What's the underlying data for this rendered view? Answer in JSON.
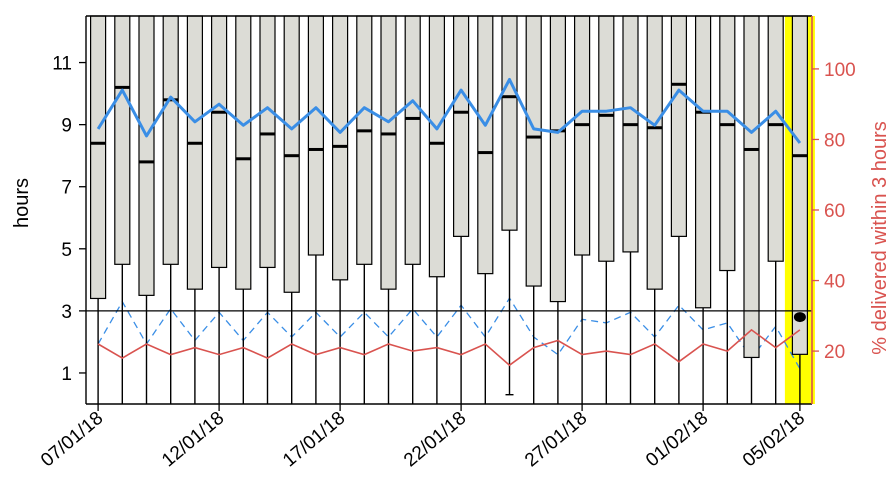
{
  "chart_data": {
    "type": "box",
    "ylabel": "hours",
    "ylabel_right": "% delivered within 3 hours",
    "ylim": [
      0,
      12.5
    ],
    "ylim_right": [
      5,
      115
    ],
    "yticks": [
      1,
      3,
      5,
      7,
      9,
      11
    ],
    "yticks_right": [
      20,
      40,
      60,
      80,
      100
    ],
    "threshold_hours": 3,
    "xtick_labels": [
      "07/01/18",
      "12/01/18",
      "17/01/18",
      "22/01/18",
      "27/01/18",
      "01/02/18",
      "05/02/18"
    ],
    "xtick_positions": [
      0,
      5,
      10,
      15,
      20,
      25,
      29
    ],
    "highlight_index": 29,
    "highlight_color": "#ffff00",
    "box_fill": "#dcdcd6",
    "colors": {
      "median_series": "#3a8ee6",
      "within3_series": "#d9534f",
      "dashed_series": "#3a8ee6",
      "right_axis": "#d9534f"
    },
    "boxes": [
      {
        "q1": 3.4,
        "median": 8.4,
        "q3": 12.5,
        "low": 0,
        "high": 12.5
      },
      {
        "q1": 4.5,
        "median": 10.2,
        "q3": 12.5,
        "low": 0,
        "high": 12.5
      },
      {
        "q1": 3.5,
        "median": 7.8,
        "q3": 12.5,
        "low": 0,
        "high": 12.5
      },
      {
        "q1": 4.5,
        "median": 9.8,
        "q3": 12.5,
        "low": 0,
        "high": 12.5
      },
      {
        "q1": 3.7,
        "median": 8.4,
        "q3": 12.5,
        "low": 0,
        "high": 12.5
      },
      {
        "q1": 4.4,
        "median": 9.4,
        "q3": 12.5,
        "low": 0,
        "high": 12.5
      },
      {
        "q1": 3.7,
        "median": 7.9,
        "q3": 12.5,
        "low": 0,
        "high": 12.5
      },
      {
        "q1": 4.4,
        "median": 8.7,
        "q3": 12.5,
        "low": 0,
        "high": 12.5
      },
      {
        "q1": 3.6,
        "median": 8.0,
        "q3": 12.5,
        "low": 0,
        "high": 12.5
      },
      {
        "q1": 4.8,
        "median": 8.2,
        "q3": 12.5,
        "low": 0,
        "high": 12.5
      },
      {
        "q1": 4.0,
        "median": 8.3,
        "q3": 12.5,
        "low": 0,
        "high": 12.5
      },
      {
        "q1": 4.5,
        "median": 8.8,
        "q3": 12.5,
        "low": 0,
        "high": 12.5
      },
      {
        "q1": 3.7,
        "median": 8.7,
        "q3": 12.5,
        "low": 0,
        "high": 12.5
      },
      {
        "q1": 4.5,
        "median": 9.2,
        "q3": 12.5,
        "low": 0,
        "high": 12.5
      },
      {
        "q1": 4.1,
        "median": 8.4,
        "q3": 12.5,
        "low": 0,
        "high": 12.5
      },
      {
        "q1": 5.4,
        "median": 9.4,
        "q3": 12.5,
        "low": 0,
        "high": 12.5
      },
      {
        "q1": 4.2,
        "median": 8.1,
        "q3": 12.5,
        "low": 0,
        "high": 12.5
      },
      {
        "q1": 5.6,
        "median": 9.9,
        "q3": 12.5,
        "low": 0.3,
        "high": 12.5
      },
      {
        "q1": 3.8,
        "median": 8.6,
        "q3": 12.5,
        "low": 0,
        "high": 12.5
      },
      {
        "q1": 3.3,
        "median": 8.8,
        "q3": 12.5,
        "low": 0,
        "high": 12.5
      },
      {
        "q1": 4.8,
        "median": 9.0,
        "q3": 12.5,
        "low": 0,
        "high": 12.5
      },
      {
        "q1": 4.6,
        "median": 9.3,
        "q3": 12.5,
        "low": 0,
        "high": 12.5
      },
      {
        "q1": 4.9,
        "median": 9.0,
        "q3": 12.5,
        "low": 0,
        "high": 12.5
      },
      {
        "q1": 3.7,
        "median": 8.9,
        "q3": 12.5,
        "low": 0,
        "high": 12.5
      },
      {
        "q1": 5.4,
        "median": 10.3,
        "q3": 12.5,
        "low": 0,
        "high": 12.5
      },
      {
        "q1": 3.1,
        "median": 9.4,
        "q3": 12.5,
        "low": 0,
        "high": 12.5
      },
      {
        "q1": 4.3,
        "median": 9.0,
        "q3": 12.5,
        "low": 0,
        "high": 12.5
      },
      {
        "q1": 1.5,
        "median": 8.2,
        "q3": 12.5,
        "low": 0,
        "high": 12.5
      },
      {
        "q1": 4.6,
        "median": 9.0,
        "q3": 12.5,
        "low": 0,
        "high": 12.5
      },
      {
        "q1": 1.6,
        "median": 8.0,
        "q3": 12.5,
        "low": 0,
        "high": 12.5
      }
    ],
    "highlight_point": {
      "index": 29,
      "value": 2.8
    },
    "median_series": [
      83,
      94,
      81,
      92,
      85,
      90,
      84,
      89,
      83,
      89,
      82,
      89,
      85,
      91,
      83,
      94,
      84,
      97,
      83,
      82,
      88,
      88,
      89,
      84,
      94,
      88,
      88,
      82,
      88,
      79
    ],
    "within3_series": [
      22,
      18,
      22,
      19,
      21,
      19,
      21,
      18,
      22,
      19,
      21,
      19,
      22,
      20,
      21,
      19,
      22,
      16,
      21,
      23,
      19,
      20,
      19,
      22,
      17,
      22,
      20,
      26,
      21,
      26
    ],
    "dashed_series": [
      22,
      34,
      22,
      32,
      23,
      31,
      23,
      31,
      24,
      31,
      24,
      31,
      24,
      32,
      24,
      33,
      24,
      35,
      24,
      19,
      29,
      28,
      31,
      24,
      33,
      26,
      28,
      18,
      27,
      15
    ]
  }
}
